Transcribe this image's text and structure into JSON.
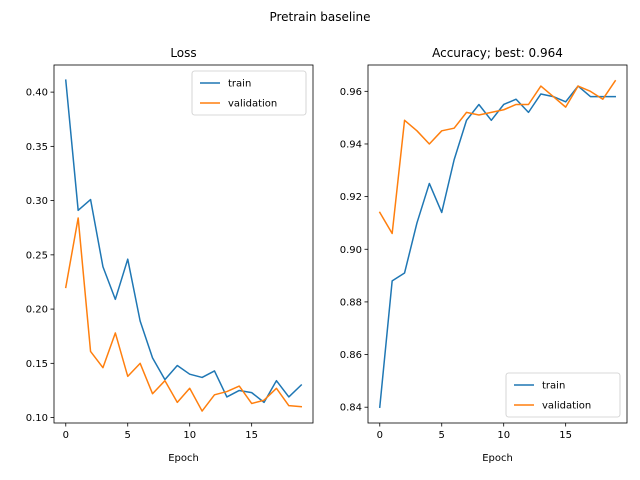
{
  "suptitle": "Pretrain baseline",
  "colors": {
    "train": "#1f77b4",
    "validation": "#ff7f0e"
  },
  "chart_data": [
    {
      "type": "line",
      "title": "Loss",
      "xlabel": "Epoch",
      "ylabel": "",
      "xlim": [
        -0.95,
        19.95
      ],
      "ylim": [
        0.095,
        0.425
      ],
      "xticks": [
        0,
        5,
        10,
        15
      ],
      "yticks": [
        0.1,
        0.15,
        0.2,
        0.25,
        0.3,
        0.35,
        0.4
      ],
      "ytick_labels": [
        "0.10",
        "0.15",
        "0.20",
        "0.25",
        "0.30",
        "0.35",
        "0.40"
      ],
      "legend": "upper right",
      "x": [
        0,
        1,
        2,
        3,
        4,
        5,
        6,
        7,
        8,
        9,
        10,
        11,
        12,
        13,
        14,
        15,
        16,
        17,
        18,
        19
      ],
      "series": [
        {
          "name": "train",
          "color": "#1f77b4",
          "values": [
            0.411,
            0.291,
            0.301,
            0.239,
            0.209,
            0.246,
            0.189,
            0.155,
            0.135,
            0.148,
            0.14,
            0.137,
            0.143,
            0.119,
            0.125,
            0.123,
            0.114,
            0.134,
            0.119,
            0.13
          ]
        },
        {
          "name": "validation",
          "color": "#ff7f0e",
          "values": [
            0.22,
            0.284,
            0.161,
            0.146,
            0.178,
            0.138,
            0.15,
            0.122,
            0.134,
            0.114,
            0.127,
            0.106,
            0.121,
            0.124,
            0.129,
            0.113,
            0.116,
            0.127,
            0.111,
            0.11
          ]
        }
      ]
    },
    {
      "type": "line",
      "title": "Accuracy; best: 0.964",
      "xlabel": "Epoch",
      "ylabel": "",
      "xlim": [
        -0.95,
        19.95
      ],
      "ylim": [
        0.834,
        0.97
      ],
      "xticks": [
        0,
        5,
        10,
        15
      ],
      "yticks": [
        0.84,
        0.86,
        0.88,
        0.9,
        0.92,
        0.94,
        0.96
      ],
      "ytick_labels": [
        "0.84",
        "0.86",
        "0.88",
        "0.90",
        "0.92",
        "0.94",
        "0.96"
      ],
      "legend": "lower right",
      "x": [
        0,
        1,
        2,
        3,
        4,
        5,
        6,
        7,
        8,
        9,
        10,
        11,
        12,
        13,
        14,
        15,
        16,
        17,
        18,
        19
      ],
      "series": [
        {
          "name": "train",
          "color": "#1f77b4",
          "values": [
            0.84,
            0.888,
            0.891,
            0.91,
            0.925,
            0.914,
            0.934,
            0.949,
            0.955,
            0.949,
            0.955,
            0.957,
            0.952,
            0.959,
            0.958,
            0.956,
            0.962,
            0.958,
            0.958,
            0.958
          ]
        },
        {
          "name": "validation",
          "color": "#ff7f0e",
          "values": [
            0.914,
            0.906,
            0.949,
            0.945,
            0.94,
            0.945,
            0.946,
            0.952,
            0.951,
            0.952,
            0.953,
            0.955,
            0.955,
            0.962,
            0.958,
            0.954,
            0.962,
            0.96,
            0.957,
            0.964
          ]
        }
      ]
    }
  ]
}
